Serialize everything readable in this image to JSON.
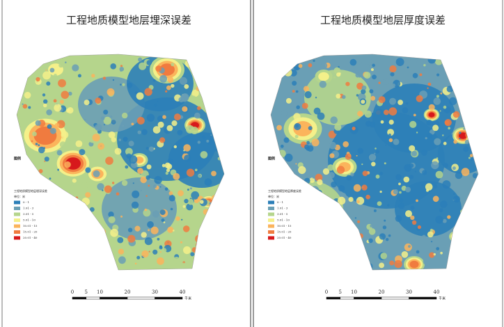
{
  "panels": [
    {
      "title": "工程地质模型地层埋深误差",
      "legend": {
        "heading": "图例",
        "unit": "单位：米",
        "subtitle": "工程地质模型地层埋深误差",
        "classes": [
          {
            "label": "0 - 1",
            "color": "#2c7fb8"
          },
          {
            "label": "1.01 - 3",
            "color": "#6a9fb5"
          },
          {
            "label": "3.01 - 5",
            "color": "#b5d58c"
          },
          {
            "label": "5.01 - 10",
            "color": "#f4f08a"
          },
          {
            "label": "10.01 - 15",
            "color": "#fbb45c"
          },
          {
            "label": "15.01 - 20",
            "color": "#f07b3f"
          },
          {
            "label": "20.01 - 40",
            "color": "#d7191c"
          }
        ]
      },
      "scale": {
        "ticks": [
          "0",
          "5",
          "10",
          "20",
          "30",
          "40"
        ],
        "unit": "千米"
      }
    },
    {
      "title": "工程地质模型地层厚度误差",
      "legend": {
        "heading": "图例",
        "unit": "单位：米",
        "subtitle": "工程地质模型地层厚度误差",
        "classes": [
          {
            "label": "0 - 1",
            "color": "#2c7fb8"
          },
          {
            "label": "1.01 - 3",
            "color": "#6a9fb5"
          },
          {
            "label": "3.01 - 5",
            "color": "#b5d58c"
          },
          {
            "label": "5.01 - 10",
            "color": "#f4f08a"
          },
          {
            "label": "10.01 - 15",
            "color": "#fbb45c"
          },
          {
            "label": "15.01 - 20",
            "color": "#f07b3f"
          },
          {
            "label": "20.01 - 40",
            "color": "#d7191c"
          }
        ]
      },
      "scale": {
        "ticks": [
          "0",
          "5",
          "10",
          "20",
          "30",
          "40"
        ],
        "unit": "千米"
      }
    }
  ]
}
